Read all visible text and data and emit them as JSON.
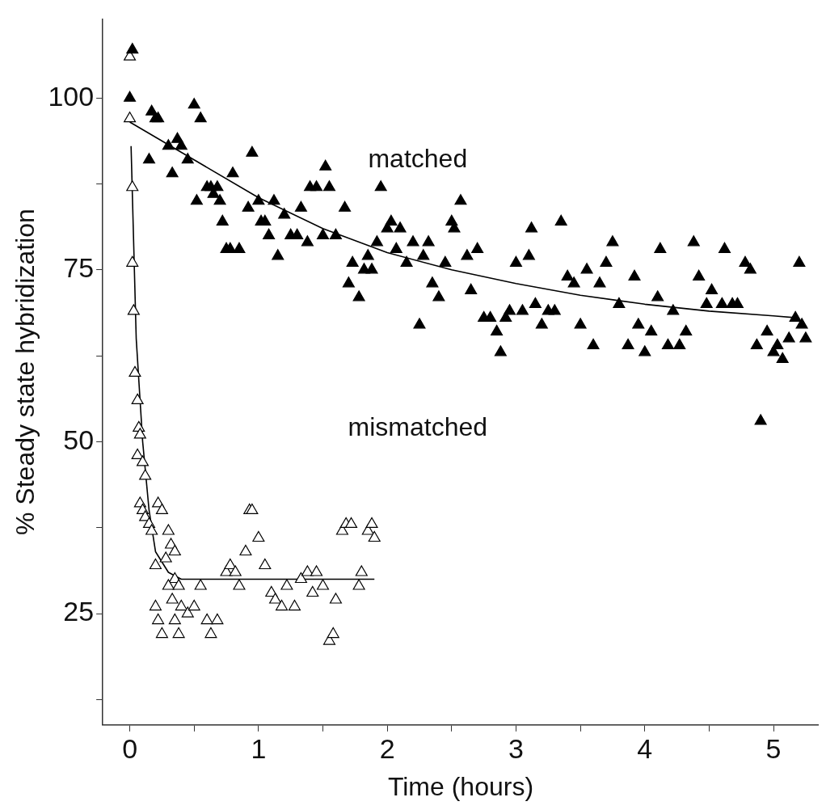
{
  "chart_data": {
    "type": "scatter",
    "xlabel": "Time (hours)",
    "ylabel": "% Steady state hybridization",
    "xlim": [
      -0.21,
      5.35
    ],
    "ylim": [
      8.8,
      111.5
    ],
    "xticks": [
      0,
      {
        "value": 0.5,
        "label": null
      },
      1,
      {
        "value": 1.5,
        "label": null
      },
      2,
      {
        "value": 2.5,
        "label": null
      },
      3,
      {
        "value": 3.5,
        "label": null
      },
      4,
      {
        "value": 4.5,
        "label": null
      },
      5
    ],
    "yticks": [
      {
        "value": 12.5,
        "label": null
      },
      25,
      {
        "value": 37.5,
        "label": null
      },
      50,
      {
        "value": 62.5,
        "label": null
      },
      75,
      {
        "value": 87.5,
        "label": null
      },
      100
    ],
    "grid": false,
    "legend": false,
    "annotations": [
      "matched",
      "mismatched"
    ],
    "series": [
      {
        "type": "scatter",
        "color": "#000000",
        "marker": "triangle",
        "x": [
          0.02,
          0.0,
          0.15,
          0.17,
          0.2,
          0.22,
          0.3,
          0.33,
          0.37,
          0.4,
          0.45,
          0.5,
          0.52,
          0.55,
          0.6,
          0.63,
          0.65,
          0.68,
          0.7,
          0.72,
          0.75,
          0.78,
          0.8,
          0.85,
          0.92,
          0.95,
          1.0,
          1.02,
          1.05,
          1.08,
          1.12,
          1.15,
          1.2,
          1.25,
          1.3,
          1.33,
          1.38,
          1.4,
          1.45,
          1.5,
          1.52,
          1.55,
          1.6,
          1.67,
          1.7,
          1.73,
          1.78,
          1.82,
          1.85,
          1.88,
          1.92,
          1.95,
          2.0,
          2.03,
          2.07,
          2.1,
          2.15,
          2.2,
          2.25,
          2.28,
          2.32,
          2.35,
          2.4,
          2.45,
          2.5,
          2.52,
          2.57,
          2.62,
          2.65,
          2.7,
          2.75,
          2.8,
          2.85,
          2.88,
          2.92,
          2.95,
          3.0,
          3.05,
          3.1,
          3.12,
          3.15,
          3.2,
          3.25,
          3.3,
          3.35,
          3.4,
          3.45,
          3.5,
          3.55,
          3.6,
          3.65,
          3.7,
          3.75,
          3.8,
          3.87,
          3.92,
          3.95,
          4.0,
          4.05,
          4.1,
          4.12,
          4.18,
          4.22,
          4.27,
          4.32,
          4.38,
          4.42,
          4.48,
          4.52,
          4.6,
          4.62,
          4.68,
          4.72,
          4.78,
          4.82,
          4.87,
          4.9,
          4.95,
          5.0,
          5.03,
          5.07,
          5.12,
          5.17,
          5.2,
          5.22,
          5.25
        ],
        "values": [
          107,
          100,
          91,
          98,
          97,
          97,
          93,
          89,
          94,
          93,
          91,
          99,
          85,
          97,
          87,
          87,
          86,
          87,
          85,
          82,
          78,
          78,
          89,
          78,
          84,
          92,
          85,
          82,
          82,
          80,
          85,
          77,
          83,
          80,
          80,
          84,
          79,
          87,
          87,
          80,
          90,
          87,
          80,
          84,
          73,
          76,
          71,
          75,
          77,
          75,
          79,
          87,
          81,
          82,
          78,
          81,
          76,
          79,
          67,
          77,
          79,
          73,
          71,
          76,
          82,
          81,
          85,
          77,
          72,
          78,
          68,
          68,
          66,
          63,
          68,
          69,
          76,
          69,
          77,
          81,
          70,
          67,
          69,
          69,
          82,
          74,
          73,
          67,
          75,
          64,
          73,
          76,
          79,
          70,
          64,
          74,
          67,
          63,
          66,
          71,
          78,
          64,
          69,
          64,
          66,
          79,
          74,
          70,
          72,
          70,
          78,
          70,
          70,
          76,
          75,
          64,
          53,
          66,
          63,
          64,
          62,
          65,
          68,
          76,
          67,
          65
        ]
      },
      {
        "type": "scatter",
        "color": "#ffffff",
        "marker": "triangle",
        "x": [
          0.0,
          0.0,
          0.02,
          0.02,
          0.03,
          0.04,
          0.06,
          0.07,
          0.08,
          0.06,
          0.1,
          0.12,
          0.08,
          0.1,
          0.12,
          0.15,
          0.17,
          0.2,
          0.22,
          0.25,
          0.2,
          0.22,
          0.25,
          0.28,
          0.3,
          0.32,
          0.35,
          0.35,
          0.3,
          0.33,
          0.38,
          0.4,
          0.45,
          0.35,
          0.38,
          0.5,
          0.55,
          0.6,
          0.63,
          0.68,
          0.75,
          0.78,
          0.82,
          0.85,
          0.9,
          0.93,
          0.95,
          1.0,
          1.05,
          1.1,
          1.13,
          1.18,
          1.22,
          1.28,
          1.33,
          1.38,
          1.42,
          1.45,
          1.5,
          1.55,
          1.58,
          1.6,
          1.65,
          1.68,
          1.72,
          1.78,
          1.8,
          1.85,
          1.88,
          1.9
        ],
        "values": [
          106,
          97,
          87,
          76,
          69,
          60,
          56,
          52,
          51,
          48,
          47,
          45,
          41,
          40,
          39,
          38,
          37,
          32,
          41,
          40,
          26,
          24,
          22,
          33,
          37,
          35,
          34,
          30,
          29,
          27,
          29,
          26,
          25,
          24,
          22,
          26,
          29,
          24,
          22,
          24,
          31,
          32,
          31,
          29,
          34,
          40,
          40,
          36,
          32,
          28,
          27,
          26,
          29,
          26,
          30,
          31,
          28,
          31,
          29,
          21,
          22,
          27,
          37,
          38,
          38,
          29,
          31,
          37,
          38,
          36
        ]
      },
      {
        "type": "line",
        "color": "#000000",
        "x": [
          0,
          0.5,
          1,
          1.5,
          2,
          2.5,
          3,
          3.5,
          4,
          4.5,
          5,
          5.2
        ],
        "values": [
          96.5,
          91,
          85.5,
          81,
          77.5,
          75,
          73,
          71.3,
          70,
          69,
          68.3,
          68
        ]
      },
      {
        "type": "line",
        "color": "#000000",
        "x": [
          0.01,
          0.05,
          0.1,
          0.15,
          0.2,
          0.3,
          0.4,
          1,
          1.9
        ],
        "values": [
          93,
          65,
          50,
          40,
          34,
          31,
          30,
          30,
          30
        ]
      }
    ]
  }
}
